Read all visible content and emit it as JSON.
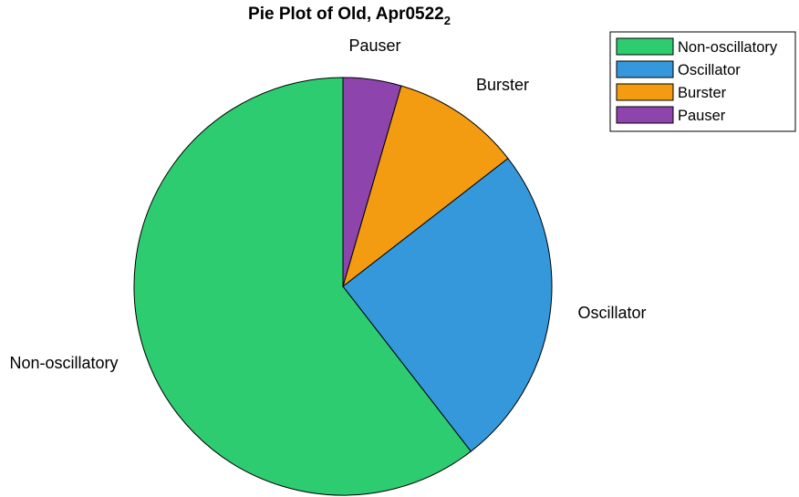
{
  "chart_data": {
    "type": "pie",
    "title": "Pie Plot of Old, Apr0522",
    "title_subscript": "2",
    "categories": [
      "Non-oscillatory",
      "Oscillator",
      "Burster",
      "Pauser"
    ],
    "values": [
      60.5,
      25.0,
      10.0,
      4.5
    ],
    "colors": [
      "#2ECC71",
      "#3498DB",
      "#F39C12",
      "#8E44AD"
    ],
    "slice_labels": [
      "Non-oscillatory",
      "Oscillator",
      "Burster",
      "Pauser"
    ],
    "legend": {
      "placement": "top-right",
      "entries": [
        "Non-oscillatory",
        "Oscillator",
        "Burster",
        "Pauser"
      ]
    }
  }
}
